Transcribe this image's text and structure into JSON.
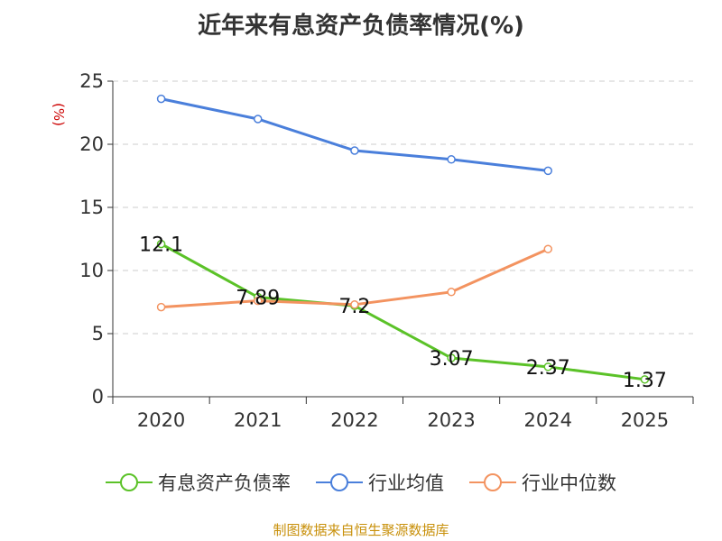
{
  "chart_data": {
    "type": "line",
    "title": "近年来有息资产负债率情况(%)",
    "ylabel": "(%)",
    "xlabel": "",
    "categories": [
      "2020",
      "2021",
      "2022",
      "2023",
      "2024",
      "2025"
    ],
    "ylim": [
      0,
      25
    ],
    "yticks": [
      0,
      5,
      10,
      15,
      20,
      25
    ],
    "series": [
      {
        "name": "有息资产负债率",
        "color": "#5bc228",
        "values": [
          12.1,
          7.89,
          7.2,
          3.07,
          2.37,
          1.37
        ],
        "labels": [
          "12.1",
          "7.89",
          "7.2",
          "3.07",
          "2.37",
          "1.37"
        ]
      },
      {
        "name": "行业均值",
        "color": "#4a7fdb",
        "values": [
          23.6,
          22.0,
          19.5,
          18.8,
          17.9,
          null
        ]
      },
      {
        "name": "行业中位数",
        "color": "#f39360",
        "values": [
          7.1,
          7.6,
          7.3,
          8.3,
          11.7,
          null
        ]
      }
    ]
  },
  "source_text": "制图数据来自恒生聚源数据库",
  "source_color": "#c8900a"
}
